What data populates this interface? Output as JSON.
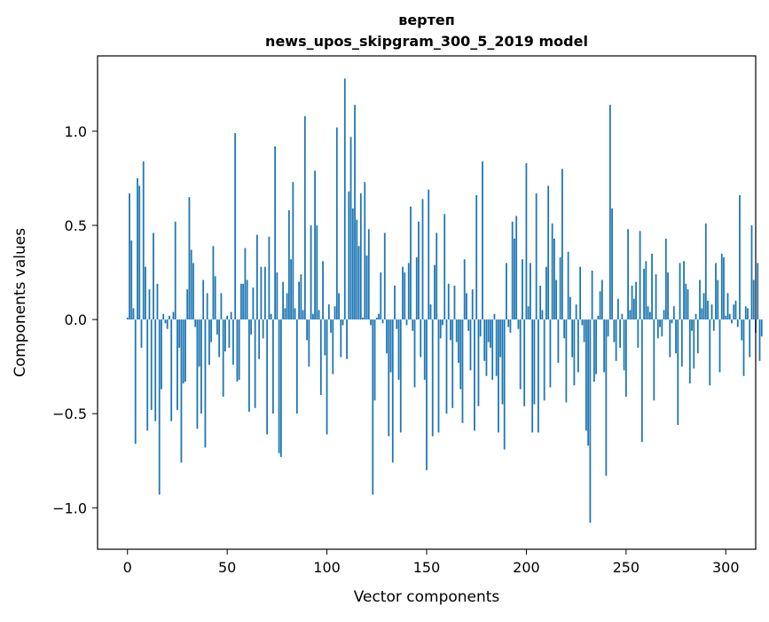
{
  "chart_data": {
    "type": "bar",
    "title": "вертеп",
    "subtitle": "news_upos_skipgram_300_5_2019 model",
    "xlabel": "Vector components",
    "ylabel": "Components values",
    "xlim": [
      -15,
      315
    ],
    "ylim": [
      -1.22,
      1.4
    ],
    "xticks": [
      0,
      50,
      100,
      150,
      200,
      250,
      300
    ],
    "yticks": [
      -1.0,
      -0.5,
      0.0,
      0.5,
      1.0
    ],
    "ytick_labels": [
      "−1.0",
      "−0.5",
      "0.0",
      "0.5",
      "1.0"
    ],
    "bar_color": "#1f77b4",
    "grid": false,
    "legend": "none",
    "x_start": 0,
    "values": [
      0.01,
      0.67,
      0.42,
      0.06,
      -0.66,
      0.75,
      0.71,
      -0.15,
      0.84,
      0.28,
      -0.59,
      0.16,
      -0.48,
      0.46,
      -0.54,
      0.19,
      -0.93,
      -0.37,
      0.03,
      -0.02,
      -0.05,
      0.02,
      -0.54,
      0.04,
      0.52,
      -0.48,
      -0.15,
      -0.76,
      -0.34,
      -0.33,
      0.16,
      0.65,
      0.37,
      0.3,
      -0.04,
      -0.58,
      -0.25,
      -0.5,
      0.21,
      -0.68,
      0.14,
      -0.24,
      -0.12,
      0.39,
      0.23,
      -0.08,
      -0.2,
      0.14,
      -0.41,
      -0.17,
      0.02,
      -0.15,
      0.04,
      -0.24,
      0.99,
      -0.33,
      -0.32,
      0.19,
      0.19,
      0.38,
      0.21,
      -0.49,
      -0.08,
      0.17,
      -0.47,
      0.45,
      -0.21,
      0.28,
      -0.1,
      0.28,
      -0.61,
      0.44,
      0.03,
      -0.5,
      0.92,
      0.25,
      -0.71,
      -0.73,
      0.2,
      0.06,
      0.14,
      0.58,
      0.32,
      0.73,
      0.06,
      -0.5,
      0.2,
      0.24,
      0.05,
      1.08,
      -0.11,
      -0.25,
      0.5,
      0.03,
      0.79,
      0.5,
      0.05,
      -0.4,
      0.31,
      -0.19,
      -0.61,
      0.08,
      -0.07,
      -0.29,
      0.07,
      1.02,
      0.14,
      -0.2,
      -0.03,
      1.28,
      -0.21,
      0.68,
      0.97,
      0.59,
      1.14,
      0.53,
      0.39,
      0.67,
      0.01,
      0.73,
      0.34,
      0.48,
      -0.03,
      -0.93,
      -0.43,
      0.01,
      0.03,
      0.25,
      -0.02,
      0.46,
      -0.18,
      -0.62,
      -0.28,
      -0.76,
      0.18,
      -0.05,
      -0.32,
      -0.6,
      0.28,
      0.25,
      -0.03,
      0.3,
      0.6,
      -0.06,
      -0.36,
      0.33,
      0.52,
      -0.2,
      0.64,
      -0.32,
      -0.8,
      0.69,
      0.08,
      -0.62,
      0.29,
      0.46,
      -0.6,
      -0.1,
      -0.03,
      0.56,
      -0.5,
      0.19,
      -0.11,
      -0.47,
      0.18,
      -0.12,
      -0.23,
      -0.37,
      -0.55,
      0.32,
      0.14,
      -0.06,
      -0.27,
      0.16,
      -0.59,
      0.66,
      -0.46,
      -0.09,
      0.84,
      -0.22,
      -0.3,
      -0.12,
      -0.15,
      -0.32,
      0.03,
      -0.3,
      -0.6,
      -0.2,
      -0.45,
      -0.69,
      0.3,
      -0.04,
      -0.07,
      0.52,
      0.43,
      0.55,
      -0.05,
      -0.37,
      0.32,
      -0.46,
      0.83,
      0.07,
      0.3,
      -0.6,
      -0.45,
      0.67,
      -0.6,
      0.18,
      0.05,
      -0.43,
      0.28,
      0.71,
      -0.36,
      0.51,
      0.43,
      0.21,
      -0.23,
      0.33,
      0.8,
      -0.1,
      -0.44,
      0.36,
      0.12,
      -0.2,
      -0.35,
      0.08,
      -0.28,
      0.28,
      -0.03,
      -0.12,
      -0.59,
      -0.67,
      -1.08,
      0.26,
      -0.33,
      -0.29,
      0.02,
      0.15,
      0.21,
      -0.28,
      -0.83,
      -0.09,
      1.14,
      0.59,
      -0.12,
      -0.22,
      0.11,
      -0.15,
      0.03,
      -0.27,
      -0.41,
      0.48,
      0.05,
      0.18,
      0.11,
      0.2,
      -0.15,
      0.47,
      -0.65,
      0.27,
      0.31,
      0.07,
      0.04,
      0.35,
      -0.43,
      0.24,
      -0.1,
      -0.04,
      -0.09,
      0.05,
      0.43,
      0.25,
      -0.2,
      -0.02,
      0.07,
      -0.18,
      -0.56,
      0.3,
      -0.25,
      0.31,
      0.19,
      0.16,
      -0.34,
      -0.06,
      -0.26,
      0.03,
      -0.18,
      0.21,
      0.06,
      0.14,
      0.51,
      0.1,
      -0.35,
      0.08,
      -0.06,
      0.3,
      0.21,
      -0.28,
      0.35,
      0.33,
      0.02,
      0.14,
      0.03,
      -0.02,
      0.08,
      0.1,
      -0.04,
      0.66,
      -0.11,
      -0.3,
      0.07,
      0.06,
      -0.2,
      0.5,
      0.21,
      -0.07,
      0.3,
      -0.22,
      -0.09
    ]
  }
}
